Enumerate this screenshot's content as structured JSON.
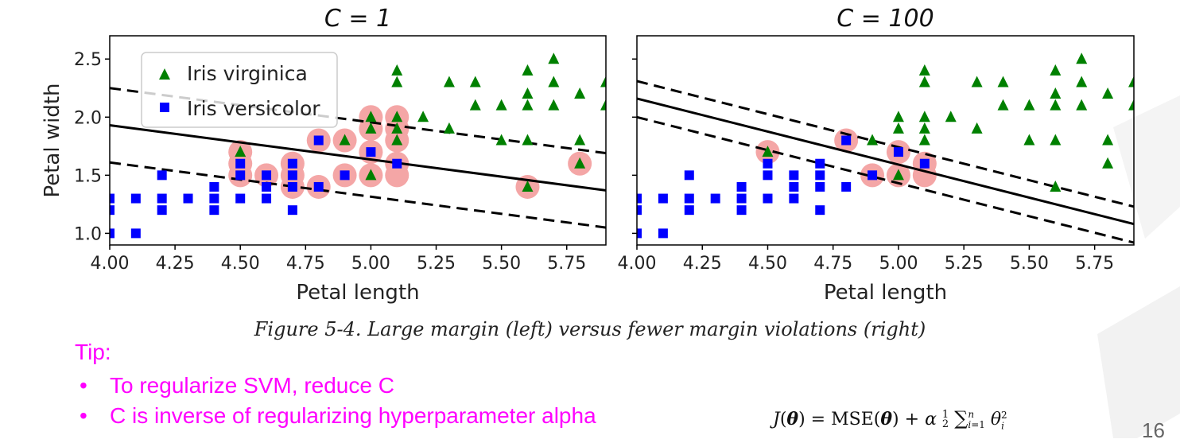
{
  "chart_data": [
    {
      "type": "scatter",
      "title": "C = 1",
      "xlabel": "Petal length",
      "ylabel": "Petal width",
      "xlim": [
        4.0,
        5.9
      ],
      "ylim": [
        0.9,
        2.7
      ],
      "xticks": [
        "4.00",
        "4.25",
        "4.50",
        "4.75",
        "5.00",
        "5.25",
        "5.50",
        "5.75"
      ],
      "yticks": [
        "1.0",
        "1.5",
        "2.0",
        "2.5"
      ],
      "legend": {
        "placement": "top-left",
        "entries": [
          "Iris virginica",
          "Iris versicolor"
        ]
      },
      "series": [
        {
          "name": "Iris virginica",
          "marker": "triangle",
          "color": "#008000",
          "points": [
            [
              4.5,
              1.7
            ],
            [
              4.9,
              1.8
            ],
            [
              5.0,
              1.5
            ],
            [
              5.0,
              2.0
            ],
            [
              5.0,
              1.9
            ],
            [
              5.1,
              2.4
            ],
            [
              5.1,
              2.3
            ],
            [
              5.1,
              2.0
            ],
            [
              5.1,
              1.9
            ],
            [
              5.1,
              1.8
            ],
            [
              5.2,
              2.0
            ],
            [
              5.3,
              2.3
            ],
            [
              5.3,
              1.9
            ],
            [
              5.4,
              2.3
            ],
            [
              5.4,
              2.1
            ],
            [
              5.5,
              2.1
            ],
            [
              5.5,
              1.8
            ],
            [
              5.6,
              2.4
            ],
            [
              5.6,
              2.2
            ],
            [
              5.6,
              2.1
            ],
            [
              5.6,
              1.8
            ],
            [
              5.6,
              1.4
            ],
            [
              5.7,
              2.5
            ],
            [
              5.7,
              2.3
            ],
            [
              5.7,
              2.1
            ],
            [
              5.8,
              2.2
            ],
            [
              5.8,
              1.8
            ],
            [
              5.8,
              1.6
            ],
            [
              5.9,
              2.3
            ],
            [
              5.9,
              2.1
            ]
          ]
        },
        {
          "name": "Iris versicolor",
          "marker": "square",
          "color": "#0000ff",
          "points": [
            [
              4.0,
              1.3
            ],
            [
              4.0,
              1.2
            ],
            [
              4.0,
              1.0
            ],
            [
              4.1,
              1.3
            ],
            [
              4.1,
              1.0
            ],
            [
              4.2,
              1.5
            ],
            [
              4.2,
              1.3
            ],
            [
              4.2,
              1.2
            ],
            [
              4.3,
              1.3
            ],
            [
              4.4,
              1.4
            ],
            [
              4.4,
              1.3
            ],
            [
              4.4,
              1.2
            ],
            [
              4.5,
              1.6
            ],
            [
              4.5,
              1.5
            ],
            [
              4.5,
              1.3
            ],
            [
              4.6,
              1.5
            ],
            [
              4.6,
              1.4
            ],
            [
              4.6,
              1.3
            ],
            [
              4.7,
              1.6
            ],
            [
              4.7,
              1.5
            ],
            [
              4.7,
              1.4
            ],
            [
              4.7,
              1.2
            ],
            [
              4.8,
              1.8
            ],
            [
              4.8,
              1.4
            ],
            [
              4.9,
              1.5
            ],
            [
              5.0,
              1.7
            ],
            [
              5.1,
              1.6
            ]
          ]
        }
      ],
      "support_vectors": [
        [
          4.5,
          1.7
        ],
        [
          4.5,
          1.6
        ],
        [
          4.5,
          1.5
        ],
        [
          4.6,
          1.5
        ],
        [
          4.7,
          1.6
        ],
        [
          4.7,
          1.5
        ],
        [
          4.7,
          1.4
        ],
        [
          4.8,
          1.8
        ],
        [
          4.8,
          1.4
        ],
        [
          4.9,
          1.8
        ],
        [
          4.9,
          1.5
        ],
        [
          5.0,
          2.0
        ],
        [
          5.0,
          1.9
        ],
        [
          5.0,
          1.7
        ],
        [
          5.0,
          1.5
        ],
        [
          5.1,
          2.0
        ],
        [
          5.1,
          1.9
        ],
        [
          5.1,
          1.8
        ],
        [
          5.1,
          1.6
        ],
        [
          5.1,
          1.5
        ],
        [
          5.6,
          1.4
        ],
        [
          5.8,
          1.6
        ]
      ],
      "decision_boundary": {
        "x": [
          4.0,
          5.9
        ],
        "y": [
          1.93,
          1.37
        ]
      },
      "margin_lines": [
        {
          "x": [
            4.0,
            5.9
          ],
          "y": [
            2.25,
            1.69
          ]
        },
        {
          "x": [
            4.0,
            5.9
          ],
          "y": [
            1.61,
            1.05
          ]
        }
      ]
    },
    {
      "type": "scatter",
      "title": "C = 100",
      "xlabel": "Petal length",
      "ylabel": "",
      "xlim": [
        4.0,
        5.9
      ],
      "ylim": [
        0.9,
        2.7
      ],
      "xticks": [
        "4.00",
        "4.25",
        "4.50",
        "4.75",
        "5.00",
        "5.25",
        "5.50",
        "5.75"
      ],
      "yticks": [],
      "series": [
        {
          "name": "Iris virginica",
          "marker": "triangle",
          "color": "#008000",
          "points": [
            [
              4.5,
              1.7
            ],
            [
              4.9,
              1.8
            ],
            [
              5.0,
              1.5
            ],
            [
              5.0,
              2.0
            ],
            [
              5.0,
              1.9
            ],
            [
              5.1,
              2.4
            ],
            [
              5.1,
              2.3
            ],
            [
              5.1,
              2.0
            ],
            [
              5.1,
              1.9
            ],
            [
              5.1,
              1.8
            ],
            [
              5.2,
              2.0
            ],
            [
              5.3,
              2.3
            ],
            [
              5.3,
              1.9
            ],
            [
              5.4,
              2.3
            ],
            [
              5.4,
              2.1
            ],
            [
              5.5,
              2.1
            ],
            [
              5.5,
              1.8
            ],
            [
              5.6,
              2.4
            ],
            [
              5.6,
              2.2
            ],
            [
              5.6,
              2.1
            ],
            [
              5.6,
              1.8
            ],
            [
              5.6,
              1.4
            ],
            [
              5.7,
              2.5
            ],
            [
              5.7,
              2.3
            ],
            [
              5.7,
              2.1
            ],
            [
              5.8,
              2.2
            ],
            [
              5.8,
              1.8
            ],
            [
              5.8,
              1.6
            ],
            [
              5.9,
              2.3
            ],
            [
              5.9,
              2.1
            ]
          ]
        },
        {
          "name": "Iris versicolor",
          "marker": "square",
          "color": "#0000ff",
          "points": [
            [
              4.0,
              1.3
            ],
            [
              4.0,
              1.2
            ],
            [
              4.0,
              1.0
            ],
            [
              4.1,
              1.3
            ],
            [
              4.1,
              1.0
            ],
            [
              4.2,
              1.5
            ],
            [
              4.2,
              1.3
            ],
            [
              4.2,
              1.2
            ],
            [
              4.3,
              1.3
            ],
            [
              4.4,
              1.4
            ],
            [
              4.4,
              1.3
            ],
            [
              4.4,
              1.2
            ],
            [
              4.5,
              1.6
            ],
            [
              4.5,
              1.5
            ],
            [
              4.5,
              1.3
            ],
            [
              4.6,
              1.5
            ],
            [
              4.6,
              1.4
            ],
            [
              4.6,
              1.3
            ],
            [
              4.7,
              1.6
            ],
            [
              4.7,
              1.5
            ],
            [
              4.7,
              1.4
            ],
            [
              4.7,
              1.2
            ],
            [
              4.8,
              1.8
            ],
            [
              4.8,
              1.4
            ],
            [
              4.9,
              1.5
            ],
            [
              5.0,
              1.7
            ],
            [
              5.1,
              1.6
            ]
          ]
        }
      ],
      "support_vectors": [
        [
          4.5,
          1.7
        ],
        [
          4.8,
          1.8
        ],
        [
          4.9,
          1.5
        ],
        [
          5.0,
          1.7
        ],
        [
          5.0,
          1.5
        ],
        [
          5.1,
          1.6
        ],
        [
          5.1,
          1.5
        ]
      ],
      "decision_boundary": {
        "x": [
          4.0,
          5.9
        ],
        "y": [
          2.16,
          1.08
        ]
      },
      "margin_lines": [
        {
          "x": [
            4.0,
            5.9
          ],
          "y": [
            2.31,
            1.23
          ]
        },
        {
          "x": [
            4.0,
            5.9
          ],
          "y": [
            2.0,
            0.92
          ]
        }
      ]
    }
  ],
  "caption": "Figure 5-4. Large margin (left) versus fewer margin violations (right)",
  "tip": {
    "heading": "Tip:",
    "bullet_symbol": "•",
    "items": [
      "To regularize SVM, reduce C",
      "C is inverse of regularizing hyperparameter alpha"
    ]
  },
  "formula_text": "J(θ) = MSE(θ) + α ½ Σ_{i=1}^{n} θ_i²",
  "page_number": "16",
  "colors": {
    "virginica": "#008000",
    "versicolor": "#0000ff",
    "support_vector_highlight": "#f4a6a6",
    "tip_text": "#ff00ff",
    "decor": "#f2f2f2"
  }
}
